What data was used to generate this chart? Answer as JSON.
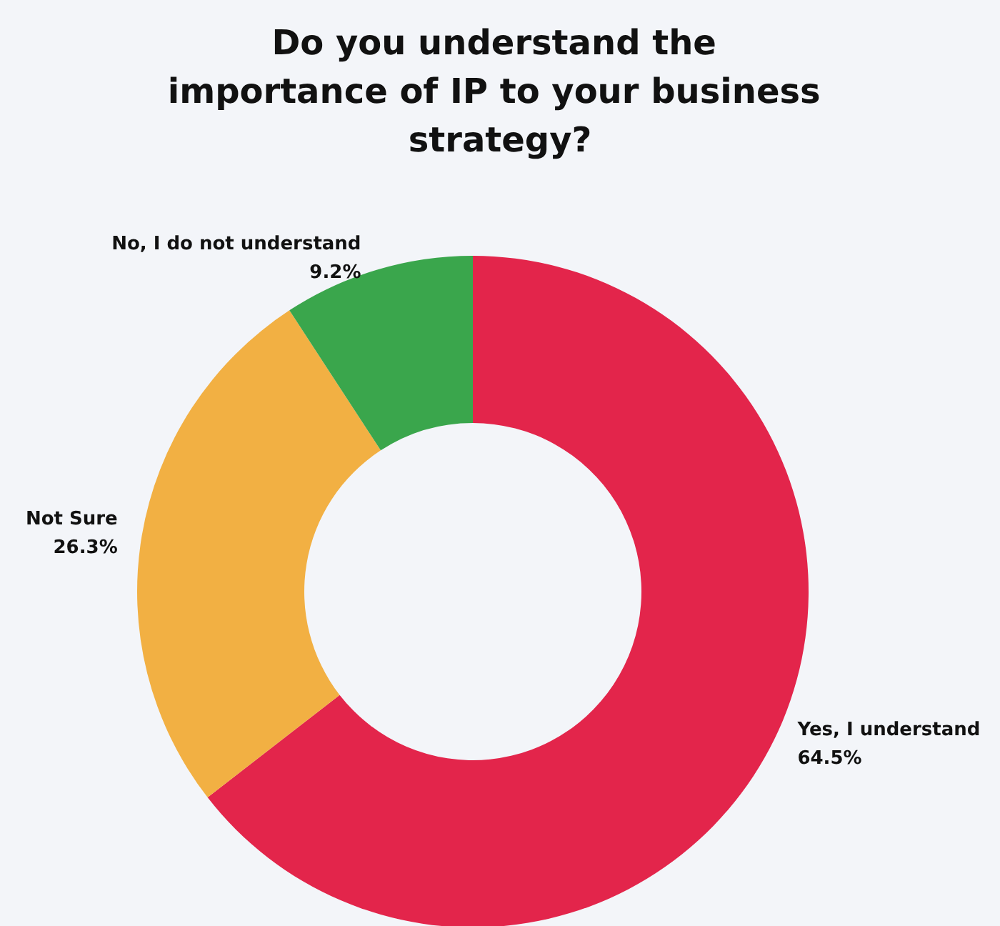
{
  "chart_data": {
    "type": "donut",
    "title": "Do you understand the importance of IP to your business strategy?",
    "categories": [
      "Yes, I understand",
      "Not Sure",
      "No, I do not understand"
    ],
    "values": [
      64.5,
      26.3,
      9.2
    ],
    "colors": [
      "#e3254b",
      "#f2b043",
      "#3aa64c"
    ],
    "value_labels": [
      "64.5%",
      "26.3%",
      "9.2%"
    ],
    "legend": false
  }
}
